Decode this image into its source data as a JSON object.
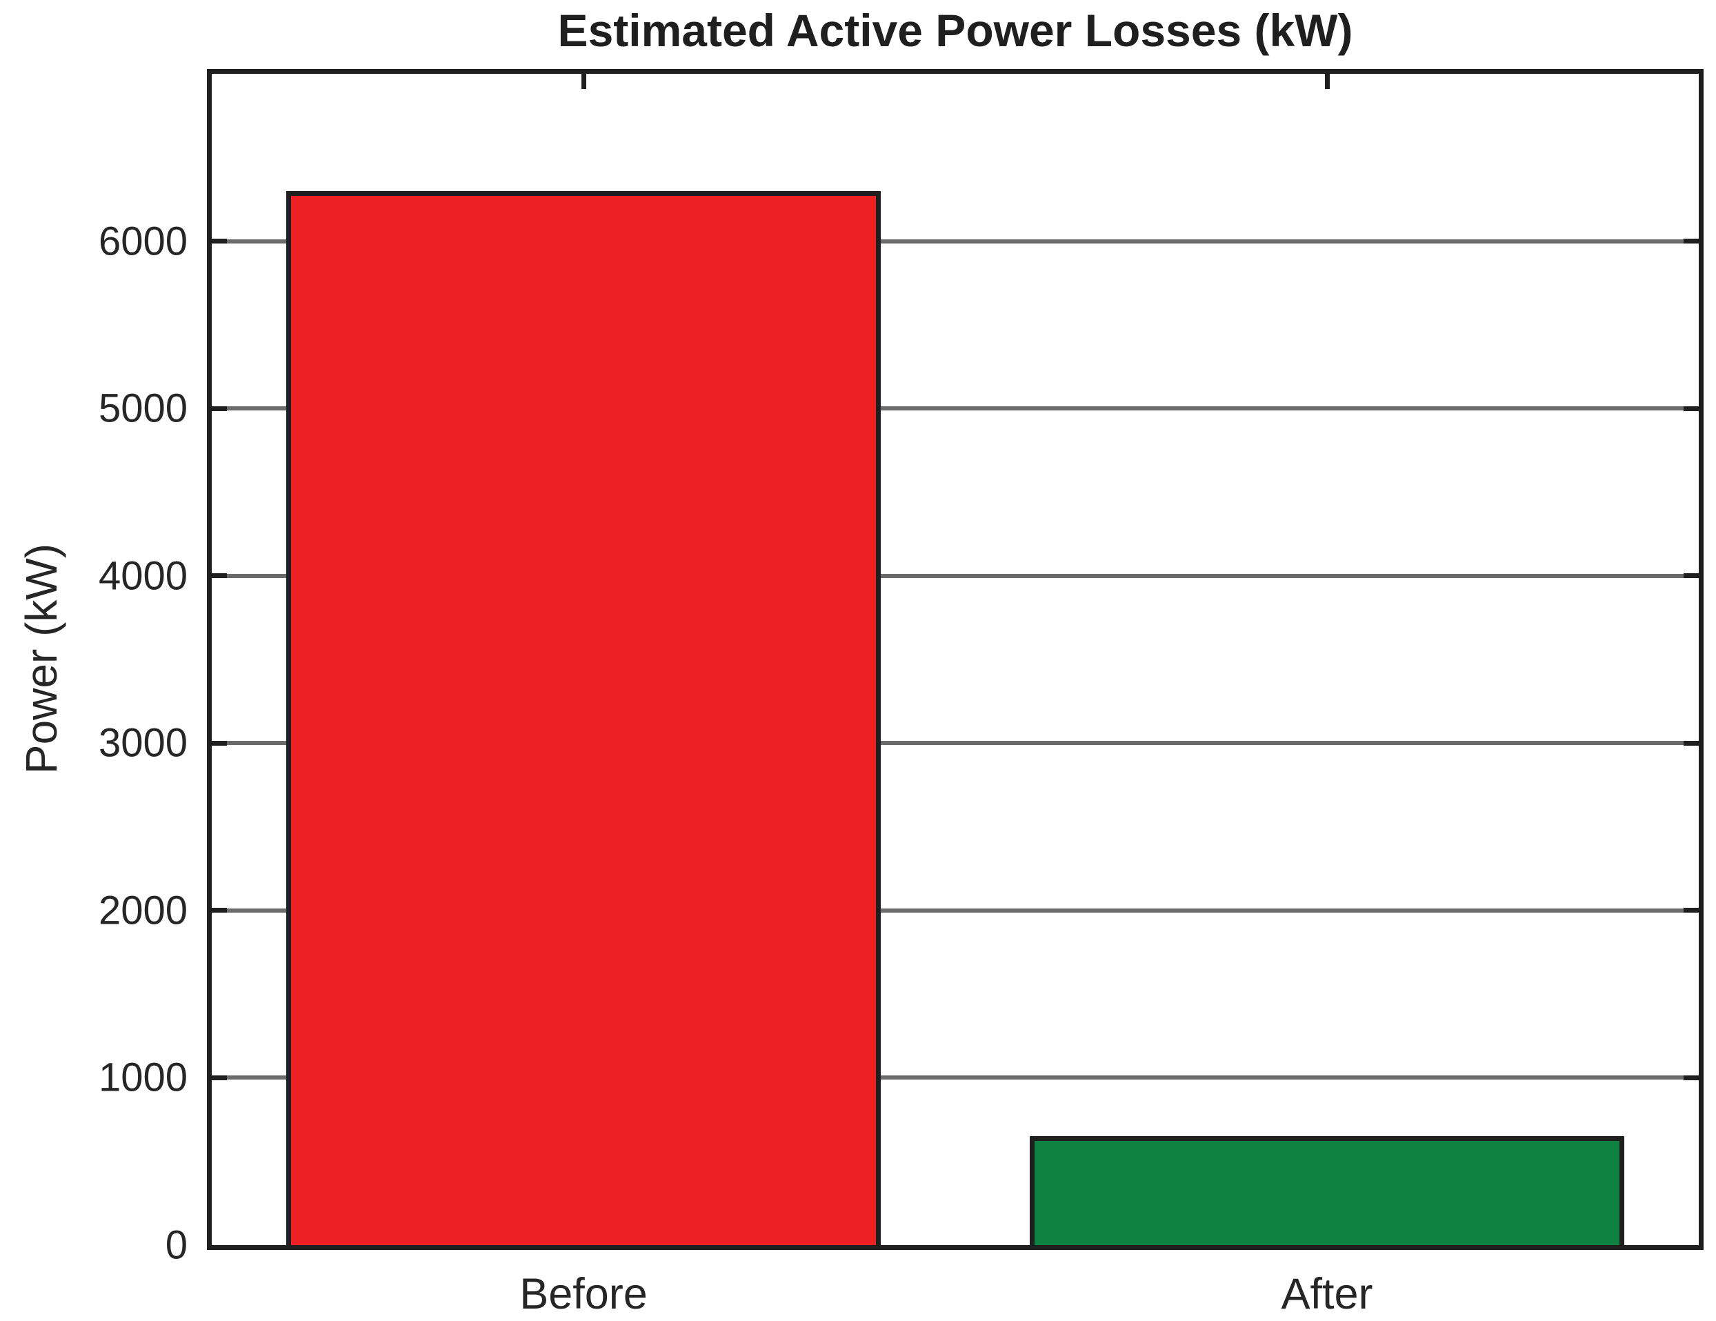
{
  "figure": {
    "background": "#ffffff",
    "text_color": "#262626",
    "axis_color": "#1f1f1f"
  },
  "chart_data": {
    "type": "bar",
    "title": "Estimated Active Power Losses (kW)",
    "xlabel": "",
    "ylabel": "Power (kW)",
    "categories": [
      "Before",
      "After"
    ],
    "values": [
      6300,
      650
    ],
    "bar_colors": [
      "#ee2024",
      "#0e8040"
    ],
    "bar_edge_color": "#1f1f1f",
    "bar_width_fraction": 0.8,
    "ylim": [
      0,
      7000
    ],
    "yticks": [
      0,
      1000,
      2000,
      3000,
      4000,
      5000,
      6000
    ],
    "grid": true,
    "grid_color": "#6b6b6b",
    "legend": null
  }
}
